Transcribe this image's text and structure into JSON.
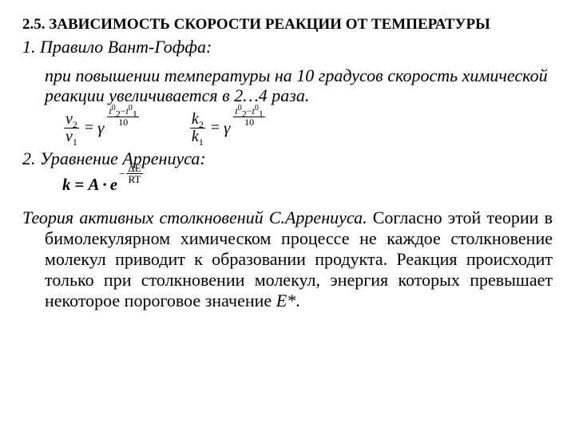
{
  "heading": "2.5. ЗАВИСИМОСТЬ СКОРОСТИ  РЕАКЦИИ ОТ ТЕМПЕРАТУРЫ",
  "rule1": {
    "title": "1. Правило Вант-Гоффа:",
    "body": "при повышении температуры на 10 градусов скорость химической реакции увеличивается в 2…4 раза."
  },
  "formula_v": {
    "num": "v",
    "num_sub": "2",
    "den": "v",
    "den_sub": "1",
    "eq": "=",
    "base": "γ",
    "exp_num_a": "t",
    "exp_num_a_sub": "2",
    "exp_num_a_sup": "0",
    "exp_minus": "−",
    "exp_num_b": "t",
    "exp_num_b_sub": "1",
    "exp_num_b_sup": "0",
    "exp_den": "10"
  },
  "formula_k": {
    "num": "k",
    "num_sub": "2",
    "den": "k",
    "den_sub": "1",
    "eq": "=",
    "base": "γ",
    "exp_num_a": "t",
    "exp_num_a_sub": "2",
    "exp_num_a_sup": "0",
    "exp_minus": "−",
    "exp_num_b": "t",
    "exp_num_b_sub": "1",
    "exp_num_b_sup": "0",
    "exp_den": "10"
  },
  "rule2": {
    "title": "2. Уравнение Аррениуса:"
  },
  "arrhenius": {
    "lhs": "k",
    "eq1": "=",
    "A": "A",
    "dot": "∙",
    "e": "e",
    "exp_minus": "−",
    "exp_num": "ΔE",
    "exp_den": "RT"
  },
  "theory": {
    "lead": "Теория активных столкновений С.Аррениуса.",
    "rest": " Согласно этой теории в бимолекулярном химическом процессе не каждое столкновение молекул приводит к образовании продукта. Реакция происходит только при столкновении молекул, энергия которых превышает некоторое пороговое значение ",
    "estar": "Е*",
    "period": "."
  }
}
